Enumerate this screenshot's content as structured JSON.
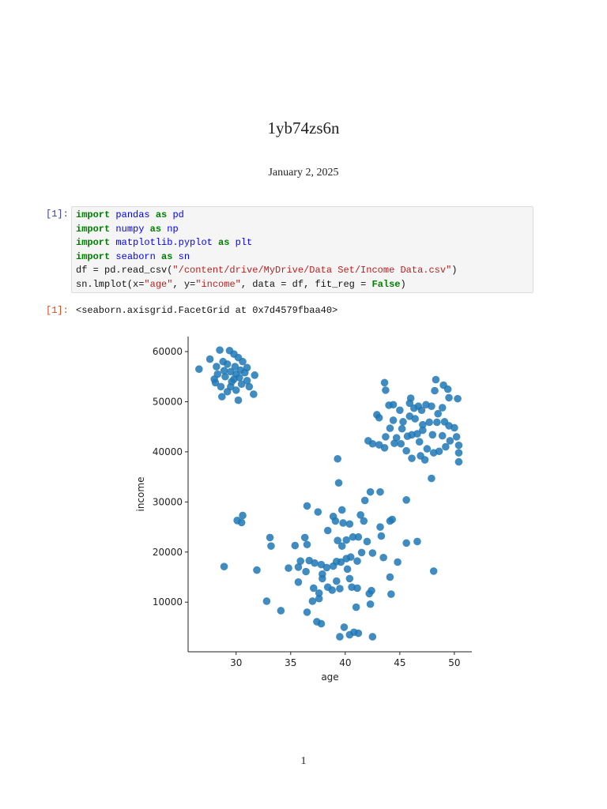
{
  "header": {
    "title": "1yb74zs6n",
    "date": "January 2, 2025"
  },
  "cell": {
    "input_prompt": "[1]:",
    "output_prompt": "[1]:",
    "output": "<seaborn.axisgrid.FacetGrid at 0x7d4579fbaa40>",
    "lines": [
      [
        {
          "text": "import",
          "kind": "kw"
        },
        {
          "text": " ",
          "kind": "plain"
        },
        {
          "text": "pandas",
          "kind": "nm"
        },
        {
          "text": " ",
          "kind": "plain"
        },
        {
          "text": "as",
          "kind": "kw"
        },
        {
          "text": " ",
          "kind": "plain"
        },
        {
          "text": "pd",
          "kind": "nm"
        }
      ],
      [
        {
          "text": "import",
          "kind": "kw"
        },
        {
          "text": " ",
          "kind": "plain"
        },
        {
          "text": "numpy",
          "kind": "nm"
        },
        {
          "text": " ",
          "kind": "plain"
        },
        {
          "text": "as",
          "kind": "kw"
        },
        {
          "text": " ",
          "kind": "plain"
        },
        {
          "text": "np",
          "kind": "nm"
        }
      ],
      [
        {
          "text": "import",
          "kind": "kw"
        },
        {
          "text": " ",
          "kind": "plain"
        },
        {
          "text": "matplotlib.pyplot",
          "kind": "nm"
        },
        {
          "text": " ",
          "kind": "plain"
        },
        {
          "text": "as",
          "kind": "kw"
        },
        {
          "text": " ",
          "kind": "plain"
        },
        {
          "text": "plt",
          "kind": "nm"
        }
      ],
      [
        {
          "text": "import",
          "kind": "kw"
        },
        {
          "text": " ",
          "kind": "plain"
        },
        {
          "text": "seaborn",
          "kind": "nm"
        },
        {
          "text": " ",
          "kind": "plain"
        },
        {
          "text": "as",
          "kind": "kw"
        },
        {
          "text": " ",
          "kind": "plain"
        },
        {
          "text": "sn",
          "kind": "nm"
        }
      ],
      [
        {
          "text": "df = pd.read_csv(",
          "kind": "plain"
        },
        {
          "text": "\"/content/drive/MyDrive/Data Set/Income Data.csv\"",
          "kind": "str"
        },
        {
          "text": ")",
          "kind": "plain"
        }
      ],
      [
        {
          "text": "sn.lmplot(x=",
          "kind": "plain"
        },
        {
          "text": "\"age\"",
          "kind": "str"
        },
        {
          "text": ", y=",
          "kind": "plain"
        },
        {
          "text": "\"income\"",
          "kind": "str"
        },
        {
          "text": ", data = df, fit_reg = ",
          "kind": "plain"
        },
        {
          "text": "False",
          "kind": "kw"
        },
        {
          "text": ")",
          "kind": "plain"
        }
      ]
    ]
  },
  "chart_data": {
    "type": "scatter",
    "x_label": "age",
    "y_label": "income",
    "color": "#1f77b4",
    "xlim": [
      25.6,
      51.6
    ],
    "ylim": [
      100,
      63000
    ],
    "xticks": [
      30,
      35,
      40,
      45,
      50
    ],
    "yticks": [
      10000,
      20000,
      30000,
      40000,
      50000,
      60000
    ],
    "x": [
      26.6,
      27.6,
      28.5,
      29.4,
      29.8,
      28.2,
      28.8,
      29.2,
      30.2,
      30.6,
      31,
      31.7,
      31,
      30.5,
      29.5,
      28.6,
      28,
      28.3,
      29,
      29.5,
      30,
      29.8,
      30.3,
      30.8,
      29.2,
      30,
      30.2,
      31.6,
      28.7,
      29.6,
      28.9,
      29.9,
      30.4,
      31.2,
      28.1,
      48.3,
      43.6,
      43.7,
      49,
      49.4,
      48.2,
      46,
      50.3,
      45.9,
      47.4,
      47.9,
      49.5,
      44,
      44.4,
      45,
      46.3,
      47,
      48.9,
      42.9,
      43.1,
      44.4,
      45.3,
      45.9,
      46.4,
      47.1,
      47.7,
      48.4,
      49.1,
      49.5,
      50,
      44.1,
      45.2,
      45.7,
      46.1,
      46.6,
      47.1,
      48,
      48.9,
      49.6,
      50.2,
      43.7,
      42.1,
      42.5,
      43.1,
      43.6,
      44.5,
      45.1,
      45.6,
      46.1,
      46.9,
      47.3,
      47.5,
      48.1,
      48.6,
      50.4,
      50.4,
      50.4,
      47.9,
      44.7,
      46.8,
      49.2,
      48.5,
      46.7,
      39.3,
      39.4,
      42.3,
      43.2,
      45.6,
      41.8,
      36.5,
      37.5,
      39.7,
      41.4,
      30.6,
      30.1,
      30.5,
      39.1,
      39.8,
      40.4,
      41.7,
      43.2,
      44.1,
      44.3,
      38.9,
      38.4,
      33.1,
      33.2,
      35.4,
      36.3,
      36.5,
      39.3,
      39.7,
      40.1,
      40.7,
      41.2,
      42,
      43.3,
      45.6,
      46.6,
      28.9,
      31.9,
      34.8,
      35.7,
      35.9,
      36.4,
      36.7,
      37.2,
      37.8,
      38.3,
      37.9,
      38.9,
      39.2,
      39.6,
      40.1,
      40.5,
      41.1,
      41.5,
      42.5,
      43.5,
      44.8,
      48.1,
      35.7,
      37.1,
      37.9,
      38.4,
      38.8,
      39.2,
      39.5,
      40.4,
      40.2,
      40.6,
      41.1,
      42.4,
      42.2,
      44.2,
      44.1,
      32.8,
      34.1,
      36.5,
      37,
      37.6,
      41,
      42.3,
      37.4,
      37.8,
      39.9,
      39.5,
      40.4,
      40.8,
      41.2,
      42.5,
      37.6
    ],
    "y": [
      56500,
      58500,
      60300,
      60200,
      59500,
      57000,
      58000,
      57500,
      58800,
      58000,
      56800,
      55300,
      54200,
      53500,
      53000,
      53000,
      54500,
      55500,
      55000,
      56000,
      55500,
      54500,
      54800,
      55800,
      52000,
      52300,
      50300,
      51500,
      51000,
      54000,
      56200,
      57000,
      56300,
      53000,
      53800,
      54400,
      53800,
      52300,
      53300,
      52500,
      52200,
      50700,
      50600,
      49700,
      49400,
      49100,
      50800,
      49300,
      49400,
      48300,
      48700,
      48300,
      48800,
      47400,
      46800,
      46300,
      46000,
      47100,
      46600,
      45400,
      45900,
      45900,
      46000,
      45200,
      44800,
      44700,
      44600,
      43100,
      43400,
      43600,
      44300,
      43400,
      43200,
      42200,
      43000,
      43000,
      42200,
      41600,
      41400,
      40800,
      41700,
      41600,
      40200,
      38700,
      39200,
      38400,
      40600,
      39800,
      40100,
      41300,
      39800,
      38000,
      34700,
      42800,
      42000,
      41000,
      47600,
      49100,
      38600,
      33800,
      32000,
      32000,
      30400,
      30300,
      29200,
      28000,
      28400,
      27400,
      27300,
      26300,
      25900,
      26200,
      25800,
      25600,
      26200,
      25000,
      26200,
      26500,
      27100,
      24300,
      22900,
      21200,
      21300,
      22900,
      21500,
      22300,
      21200,
      22400,
      23000,
      23000,
      22100,
      23200,
      21800,
      22100,
      17100,
      16400,
      16800,
      17000,
      18200,
      16100,
      18300,
      17800,
      17500,
      16900,
      15600,
      17200,
      18100,
      18000,
      18700,
      19000,
      18200,
      19900,
      19800,
      18900,
      18000,
      16200,
      14000,
      12800,
      14700,
      13000,
      12400,
      14200,
      12700,
      14700,
      16600,
      13000,
      12800,
      12300,
      11700,
      11600,
      15000,
      10200,
      8300,
      8000,
      10200,
      10700,
      9000,
      9600,
      6100,
      5700,
      5000,
      3100,
      3500,
      4000,
      3800,
      3100,
      11800
    ]
  },
  "footer": {
    "page_number": "1"
  }
}
